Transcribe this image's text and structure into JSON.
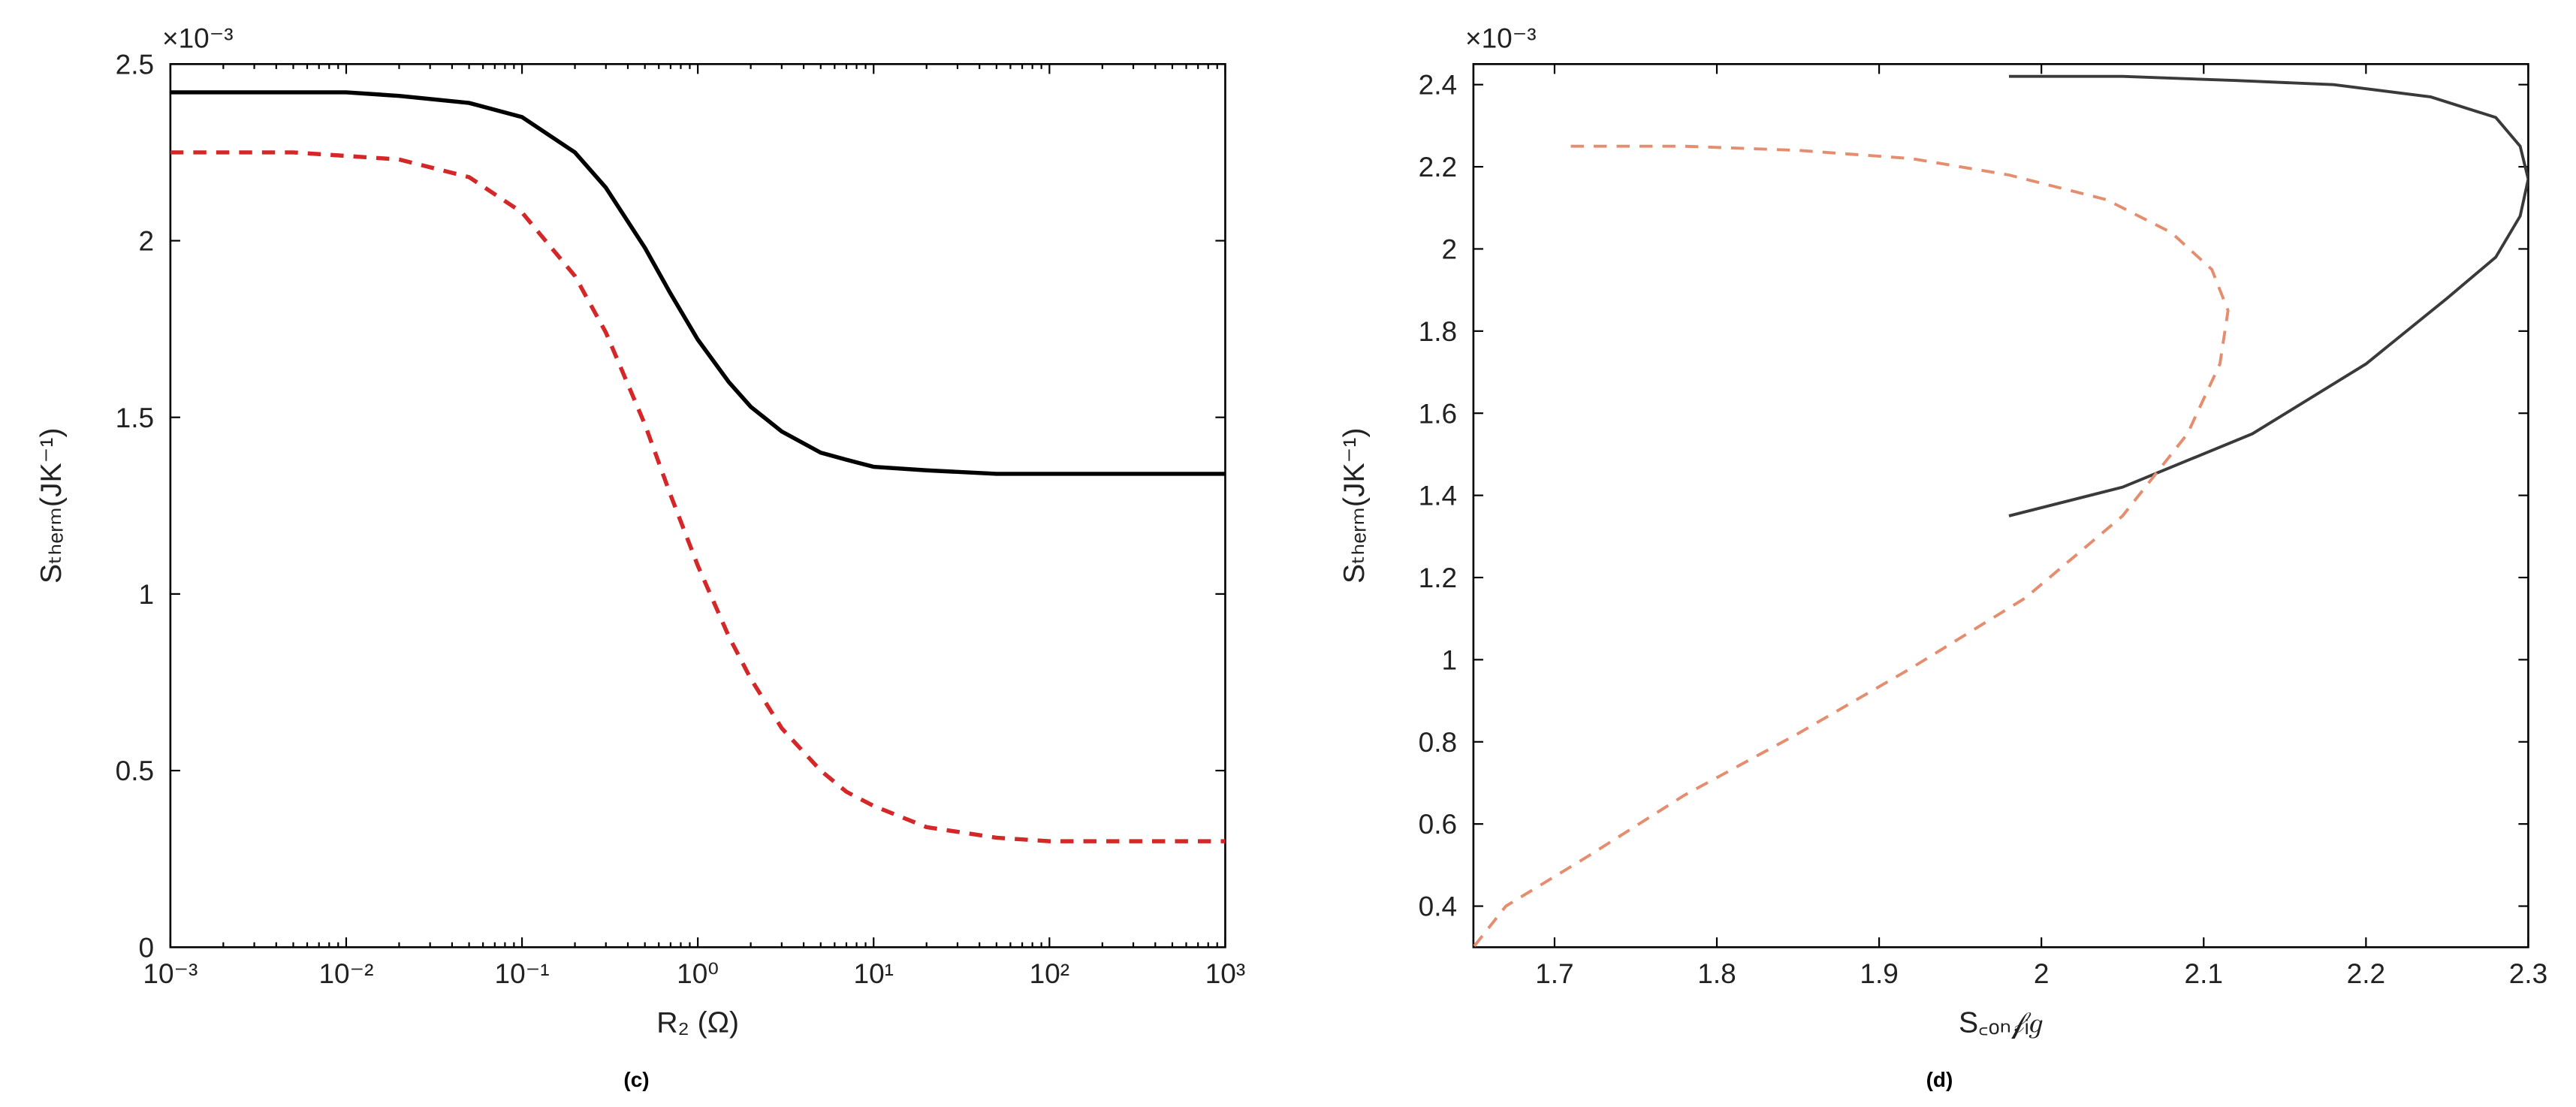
{
  "figure": {
    "background_color": "#ffffff",
    "axis_color": "#000000",
    "tick_font_size": 17,
    "label_font_size": 18,
    "panel_label_font_size": 28
  },
  "panel_c": {
    "type": "line",
    "label": "(c)",
    "x_scale": "log",
    "xlim": [
      0.001,
      1000
    ],
    "ylim": [
      0,
      2.5
    ],
    "y_multiplier_text": "×10⁻³",
    "xlabel": "R₂ (Ω)",
    "ylabel": "Sₜₕₑᵣₘ(JK⁻¹)",
    "x_ticks": [
      {
        "v": 0.001,
        "label": "10⁻³"
      },
      {
        "v": 0.01,
        "label": "10⁻²"
      },
      {
        "v": 0.1,
        "label": "10⁻¹"
      },
      {
        "v": 1,
        "label": "10⁰"
      },
      {
        "v": 10,
        "label": "10¹"
      },
      {
        "v": 100,
        "label": "10²"
      },
      {
        "v": 1000,
        "label": "10³"
      }
    ],
    "y_ticks": [
      {
        "v": 0,
        "label": "0"
      },
      {
        "v": 0.5,
        "label": "0.5"
      },
      {
        "v": 1,
        "label": "1"
      },
      {
        "v": 1.5,
        "label": "1.5"
      },
      {
        "v": 2,
        "label": "2"
      },
      {
        "v": 2.5,
        "label": "2.5"
      }
    ],
    "series": [
      {
        "name": "solid-black",
        "color": "#000000",
        "line_width": 2.5,
        "dash": "none",
        "x": [
          0.001,
          0.002,
          0.005,
          0.01,
          0.02,
          0.05,
          0.1,
          0.2,
          0.3,
          0.5,
          0.7,
          1,
          1.5,
          2,
          3,
          5,
          7,
          10,
          20,
          50,
          100,
          200,
          500,
          1000
        ],
        "y": [
          2.42,
          2.42,
          2.42,
          2.42,
          2.41,
          2.39,
          2.35,
          2.25,
          2.15,
          1.98,
          1.85,
          1.72,
          1.6,
          1.53,
          1.46,
          1.4,
          1.38,
          1.36,
          1.35,
          1.34,
          1.34,
          1.34,
          1.34,
          1.34
        ]
      },
      {
        "name": "dashed-red",
        "color": "#d62728",
        "line_width": 2.5,
        "dash": "8,6",
        "x": [
          0.001,
          0.002,
          0.005,
          0.01,
          0.02,
          0.05,
          0.1,
          0.2,
          0.3,
          0.5,
          0.7,
          1,
          1.5,
          2,
          3,
          5,
          7,
          10,
          20,
          50,
          100,
          200,
          500,
          1000
        ],
        "y": [
          2.25,
          2.25,
          2.25,
          2.24,
          2.23,
          2.18,
          2.08,
          1.9,
          1.74,
          1.48,
          1.28,
          1.08,
          0.88,
          0.76,
          0.62,
          0.5,
          0.44,
          0.4,
          0.34,
          0.31,
          0.3,
          0.3,
          0.3,
          0.3
        ]
      }
    ]
  },
  "panel_d": {
    "type": "line",
    "label": "(d)",
    "x_scale": "linear",
    "xlim": [
      1.65,
      2.3
    ],
    "ylim": [
      0.3,
      2.45
    ],
    "y_multiplier_text": "×10⁻³",
    "xlabel": "S꜀ₒₙ𝒻ᵢ𝑔",
    "ylabel": "Sₜₕₑᵣₘ(JK⁻¹)",
    "x_ticks": [
      {
        "v": 1.7,
        "label": "1.7"
      },
      {
        "v": 1.8,
        "label": "1.8"
      },
      {
        "v": 1.9,
        "label": "1.9"
      },
      {
        "v": 2.0,
        "label": "2"
      },
      {
        "v": 2.1,
        "label": "2.1"
      },
      {
        "v": 2.2,
        "label": "2.2"
      },
      {
        "v": 2.3,
        "label": "2.3"
      }
    ],
    "y_ticks": [
      {
        "v": 0.4,
        "label": "0.4"
      },
      {
        "v": 0.6,
        "label": "0.6"
      },
      {
        "v": 0.8,
        "label": "0.8"
      },
      {
        "v": 1.0,
        "label": "1"
      },
      {
        "v": 1.2,
        "label": "1.2"
      },
      {
        "v": 1.4,
        "label": "1.4"
      },
      {
        "v": 1.6,
        "label": "1.6"
      },
      {
        "v": 1.8,
        "label": "1.8"
      },
      {
        "v": 2.0,
        "label": "2"
      },
      {
        "v": 2.2,
        "label": "2.2"
      },
      {
        "v": 2.4,
        "label": "2.4"
      }
    ],
    "series": [
      {
        "name": "solid-black",
        "color": "#3a3a3a",
        "line_width": 1.8,
        "dash": "none",
        "x": [
          1.98,
          2.05,
          2.12,
          2.18,
          2.24,
          2.28,
          2.295,
          2.3,
          2.295,
          2.28,
          2.25,
          2.2,
          2.13,
          2.05,
          1.98
        ],
        "y": [
          2.42,
          2.42,
          2.41,
          2.4,
          2.37,
          2.32,
          2.25,
          2.17,
          2.08,
          1.98,
          1.88,
          1.72,
          1.55,
          1.42,
          1.35
        ]
      },
      {
        "name": "dashed-orange",
        "color": "#e58d6f",
        "line_width": 1.8,
        "dash": "8,6",
        "x": [
          1.71,
          1.78,
          1.85,
          1.92,
          1.98,
          2.04,
          2.08,
          2.105,
          2.115,
          2.11,
          2.09,
          2.05,
          1.99,
          1.92,
          1.85,
          1.78,
          1.72,
          1.67,
          1.65
        ],
        "y": [
          2.25,
          2.25,
          2.24,
          2.22,
          2.18,
          2.12,
          2.04,
          1.95,
          1.85,
          1.72,
          1.55,
          1.35,
          1.15,
          0.98,
          0.82,
          0.67,
          0.52,
          0.4,
          0.3
        ]
      }
    ]
  }
}
